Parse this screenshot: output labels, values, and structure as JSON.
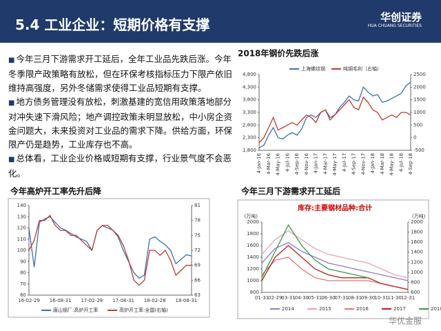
{
  "header": {
    "title": "5.4 工业企业：短期价格有支撑",
    "logo": "华创证券",
    "logo_sub": "HUA CHUANG SECURITIES"
  },
  "bullets": [
    "今年三月下游需求开工延后，全年工业品先跌后涨。今年冬季限产政策略有放松，但在环保考核指标压力下限产依旧维持高强度，另外冬储需求使得工业品短期有支撑。",
    "地方债务管理没有放松，刺激基建的宽信用政策落地部分对冲失速下滑风险；地产调控政策未明显放松，中小房企资金问题大，未来投资对工业品的需求下降。供给方面，环保限产仍是趋势，工业库存也不高。",
    "总体看，工业企业价格或短期有支撑，行业景气度不会恶化。"
  ],
  "watermark": "华优金服",
  "chart_data": [
    {
      "type": "line",
      "title": "2018年钢价先跌后涨",
      "categories": [
        "4-Jan-16",
        null,
        "4-Mar-16",
        null,
        "4-May-16",
        null,
        "4-Jul-16",
        null,
        "4-Sep-16",
        null,
        "4-Nov-16",
        null,
        "4-Jan-17",
        null,
        "4-Mar-17",
        null,
        "4-May-17",
        null,
        "4-Jul-17",
        null,
        "4-Sep-17",
        null,
        "4-Nov-17",
        null,
        "4-Jan-18",
        null,
        "4-Mar-18",
        null,
        "4-May-18",
        null,
        "4-Jul-18",
        null,
        "4-Sep-18"
      ],
      "series": [
        {
          "name": "上海螺纹钢",
          "color": "#3b6fb0",
          "values": [
            1900,
            2000,
            2400,
            2700,
            2300,
            2250,
            2400,
            2500,
            2400,
            2650,
            3100,
            3200,
            3100,
            3300,
            3400,
            3100,
            3200,
            3500,
            3700,
            3950,
            3800,
            3750,
            4300,
            4100,
            3950,
            4000,
            3700,
            3750,
            3850,
            3950,
            4050,
            4350,
            4500
          ]
        },
        {
          "name": "吨钢毛利（右轴）",
          "color": "#c0392b",
          "axis": "y2",
          "values": [
            -200,
            0,
            400,
            800,
            300,
            400,
            500,
            600,
            500,
            700,
            900,
            800,
            600,
            1000,
            1100,
            700,
            900,
            1100,
            1300,
            1500,
            1200,
            1100,
            1600,
            1400,
            1100,
            1000,
            700,
            800,
            900,
            800,
            1000,
            1000,
            900
          ]
        }
      ],
      "ylim": [
        1800,
        4800
      ],
      "yticks": [
        {
          "value": 1800,
          "label": "1,800"
        },
        {
          "value": 2300,
          "label": "2,300"
        },
        {
          "value": 2800,
          "label": "2,800"
        },
        {
          "value": 3300,
          "label": "3,300"
        },
        {
          "value": 3800,
          "label": "3,800"
        },
        {
          "value": 4300,
          "label": "4,300"
        },
        {
          "value": 4800,
          "label": "4,800"
        }
      ],
      "y2lim": [
        -500,
        2500
      ],
      "y2ticks": [
        -500,
        0,
        500,
        1000,
        1500,
        2000,
        2500
      ],
      "grid": false
    },
    {
      "type": "line",
      "title": "今年高炉开工率先升后降",
      "categories": [
        "16-02-29",
        null,
        null,
        null,
        null,
        null,
        "16-08-31",
        null,
        null,
        null,
        null,
        null,
        "17-02-28",
        null,
        null,
        null,
        null,
        null,
        "17-08-31",
        null,
        null,
        null,
        null,
        null,
        "18-02-28",
        null,
        null,
        null,
        null,
        null,
        "18-08-31",
        null
      ],
      "series": [
        {
          "name": "唐山钢厂:高炉开工率",
          "color": "#3b6fb0",
          "values": [
            120,
            85,
            125,
            128,
            130,
            125,
            120,
            118,
            115,
            112,
            110,
            108,
            100,
            118,
            122,
            120,
            118,
            112,
            100,
            90,
            80,
            75,
            78,
            110,
            112,
            108,
            105,
            100,
            88,
            92,
            96,
            95
          ]
        },
        {
          "name": "高炉开工率:全国(右轴)",
          "color": "#c0392b",
          "axis": "y2",
          "values": [
            72,
            74,
            78,
            78,
            79,
            77,
            76,
            76,
            75,
            75,
            74,
            73,
            72,
            76,
            77,
            77,
            76,
            75,
            73,
            70,
            66,
            65,
            66,
            72,
            72,
            71,
            72,
            70,
            67,
            68,
            69,
            69
          ]
        }
      ],
      "ylim": [
        60,
        140
      ],
      "yticks": [
        60,
        70,
        80,
        90,
        100,
        110,
        120,
        130,
        140
      ],
      "y2lim": [
        63,
        81
      ],
      "y2ticks": [
        63,
        66,
        69,
        72,
        75,
        78,
        81
      ],
      "grid": false
    },
    {
      "type": "line",
      "title": "今年三月下游需求开工延后",
      "subtitle": "库存:主要钢材品种:合计",
      "y_unit": "(万吨)",
      "y2_unit": "(万吨)",
      "categories": [
        "01-31",
        "02-29",
        "03-31",
        "04-30",
        "05-31",
        "06-30",
        "07-31",
        "08-31",
        "09-30",
        "10-31",
        "11-30",
        "12-31"
      ],
      "series": [
        {
          "name": "2014",
          "color": "#8e7cc3",
          "values": [
            1300,
            1550,
            1650,
            1500,
            1400,
            1300,
            1250,
            1200,
            1150,
            1100,
            1050,
            1000
          ]
        },
        {
          "name": "2015",
          "color": "#e8a0b4",
          "values": [
            1450,
            1700,
            1850,
            1700,
            1550,
            1450,
            1400,
            1350,
            1300,
            1200,
            1100,
            1050
          ]
        },
        {
          "name": "2016",
          "color": "#e57373",
          "values": [
            1100,
            1350,
            1400,
            1200,
            1050,
            1000,
            1000,
            1000,
            1000,
            950,
            900,
            850
          ]
        },
        {
          "name": "2017",
          "color": "#b71c1c",
          "values": [
            1000,
            1400,
            1600,
            1400,
            1200,
            1100,
            1050,
            1050,
            1050,
            950,
            900,
            850
          ]
        },
        {
          "name": "2018",
          "color": "#2e9e45",
          "values": [
            1050,
            1500,
            1950,
            1600,
            1350,
            1200,
            1150,
            1100,
            1050,
            null,
            null,
            null
          ]
        }
      ],
      "ylim": [
        800,
        2000
      ],
      "yticks": [
        800,
        1000,
        1200,
        1400,
        1600,
        1800,
        2000
      ],
      "y2lim": [
        600,
        2000
      ],
      "y2ticks": [
        600,
        800,
        1000,
        1200,
        1400,
        1600,
        1800,
        2000
      ],
      "grid": false
    }
  ]
}
